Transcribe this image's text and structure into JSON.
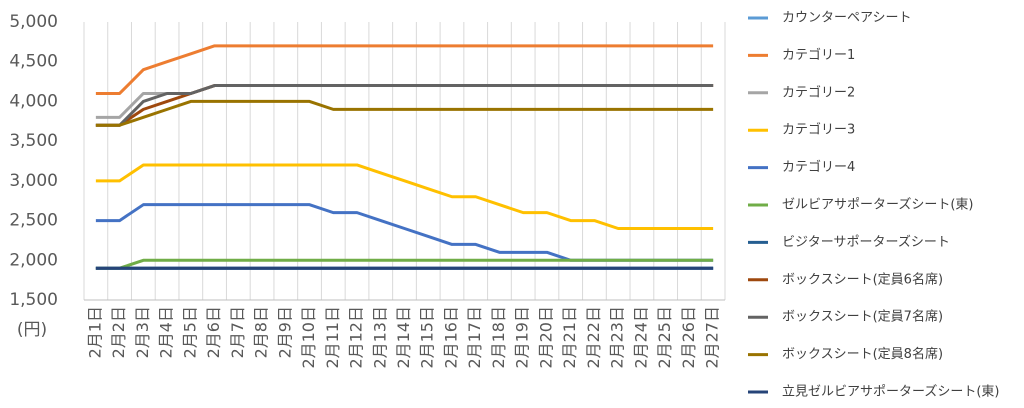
{
  "chart_data": {
    "type": "line",
    "y_axis_label": "(円)",
    "categories": [
      "2月1日",
      "2月2日",
      "2月3日",
      "2月4日",
      "2月5日",
      "2月6日",
      "2月7日",
      "2月8日",
      "2月9日",
      "2月10日",
      "2月11日",
      "2月12日",
      "2月13日",
      "2月14日",
      "2月15日",
      "2月16日",
      "2月17日",
      "2月18日",
      "2月19日",
      "2月20日",
      "2月21日",
      "2月22日",
      "2月23日",
      "2月24日",
      "2月25日",
      "2月26日",
      "2月27日"
    ],
    "ylim": [
      1500,
      5000
    ],
    "yticks": [
      {
        "value": 1500,
        "label": "1,500"
      },
      {
        "value": 2000,
        "label": "2,000"
      },
      {
        "value": 2500,
        "label": "2,500"
      },
      {
        "value": 3000,
        "label": "3,000"
      },
      {
        "value": 3500,
        "label": "3,500"
      },
      {
        "value": 4000,
        "label": "4,000"
      },
      {
        "value": 4500,
        "label": "4,500"
      },
      {
        "value": 5000,
        "label": "5,000"
      }
    ],
    "grid": "vertical",
    "legend": "right",
    "series": [
      {
        "name": "カウンターペアシート",
        "color": "#5b9bd5",
        "values": [
          1900,
          1900,
          1900,
          1900,
          1900,
          1900,
          1900,
          1900,
          1900,
          1900,
          1900,
          1900,
          1900,
          1900,
          1900,
          1900,
          1900,
          1900,
          1900,
          1900,
          1900,
          1900,
          1900,
          1900,
          1900,
          1900,
          1900
        ]
      },
      {
        "name": "カテゴリー1",
        "color": "#ed7d31",
        "values": [
          4100,
          4100,
          4400,
          4500,
          4600,
          4700,
          4700,
          4700,
          4700,
          4700,
          4700,
          4700,
          4700,
          4700,
          4700,
          4700,
          4700,
          4700,
          4700,
          4700,
          4700,
          4700,
          4700,
          4700,
          4700,
          4700,
          4700
        ]
      },
      {
        "name": "カテゴリー2",
        "color": "#a5a5a5",
        "values": [
          3800,
          3800,
          4100,
          4100,
          4100,
          4200,
          4200,
          4200,
          4200,
          4200,
          4200,
          4200,
          4200,
          4200,
          4200,
          4200,
          4200,
          4200,
          4200,
          4200,
          4200,
          4200,
          4200,
          4200,
          4200,
          4200,
          4200
        ]
      },
      {
        "name": "カテゴリー3",
        "color": "#ffc000",
        "values": [
          3000,
          3000,
          3200,
          3200,
          3200,
          3200,
          3200,
          3200,
          3200,
          3200,
          3200,
          3200,
          3100,
          3000,
          2900,
          2800,
          2800,
          2700,
          2600,
          2600,
          2500,
          2500,
          2400,
          2400,
          2400,
          2400,
          2400
        ]
      },
      {
        "name": "カテゴリー4",
        "color": "#4472c4",
        "values": [
          2500,
          2500,
          2700,
          2700,
          2700,
          2700,
          2700,
          2700,
          2700,
          2700,
          2600,
          2600,
          2500,
          2400,
          2300,
          2200,
          2200,
          2100,
          2100,
          2100,
          2000,
          2000,
          2000,
          2000,
          2000,
          2000,
          2000
        ]
      },
      {
        "name": "ゼルビアサポーターズシート(東)",
        "color": "#70ad47",
        "values": [
          1900,
          1900,
          2000,
          2000,
          2000,
          2000,
          2000,
          2000,
          2000,
          2000,
          2000,
          2000,
          2000,
          2000,
          2000,
          2000,
          2000,
          2000,
          2000,
          2000,
          2000,
          2000,
          2000,
          2000,
          2000,
          2000,
          2000
        ]
      },
      {
        "name": "ビジターサポーターズシート",
        "color": "#255e91",
        "values": [
          1900,
          1900,
          1900,
          1900,
          1900,
          1900,
          1900,
          1900,
          1900,
          1900,
          1900,
          1900,
          1900,
          1900,
          1900,
          1900,
          1900,
          1900,
          1900,
          1900,
          1900,
          1900,
          1900,
          1900,
          1900,
          1900,
          1900
        ]
      },
      {
        "name": "ボックスシート(定員6名席)",
        "color": "#9e480e",
        "values": [
          3700,
          3700,
          3900,
          4000,
          4100,
          4200,
          4200,
          4200,
          4200,
          4200,
          4200,
          4200,
          4200,
          4200,
          4200,
          4200,
          4200,
          4200,
          4200,
          4200,
          4200,
          4200,
          4200,
          4200,
          4200,
          4200,
          4200
        ]
      },
      {
        "name": "ボックスシート(定員7名席)",
        "color": "#636363",
        "values": [
          3700,
          3700,
          4000,
          4100,
          4100,
          4200,
          4200,
          4200,
          4200,
          4200,
          4200,
          4200,
          4200,
          4200,
          4200,
          4200,
          4200,
          4200,
          4200,
          4200,
          4200,
          4200,
          4200,
          4200,
          4200,
          4200,
          4200
        ]
      },
      {
        "name": "ボックスシート(定員8名席)",
        "color": "#997300",
        "values": [
          3700,
          3700,
          3800,
          3900,
          4000,
          4000,
          4000,
          4000,
          4000,
          4000,
          3900,
          3900,
          3900,
          3900,
          3900,
          3900,
          3900,
          3900,
          3900,
          3900,
          3900,
          3900,
          3900,
          3900,
          3900,
          3900,
          3900
        ]
      },
      {
        "name": "立見ゼルビアサポーターズシート(東)",
        "color": "#264478",
        "values": [
          1900,
          1900,
          1900,
          1900,
          1900,
          1900,
          1900,
          1900,
          1900,
          1900,
          1900,
          1900,
          1900,
          1900,
          1900,
          1900,
          1900,
          1900,
          1900,
          1900,
          1900,
          1900,
          1900,
          1900,
          1900,
          1900,
          1900
        ]
      }
    ]
  }
}
